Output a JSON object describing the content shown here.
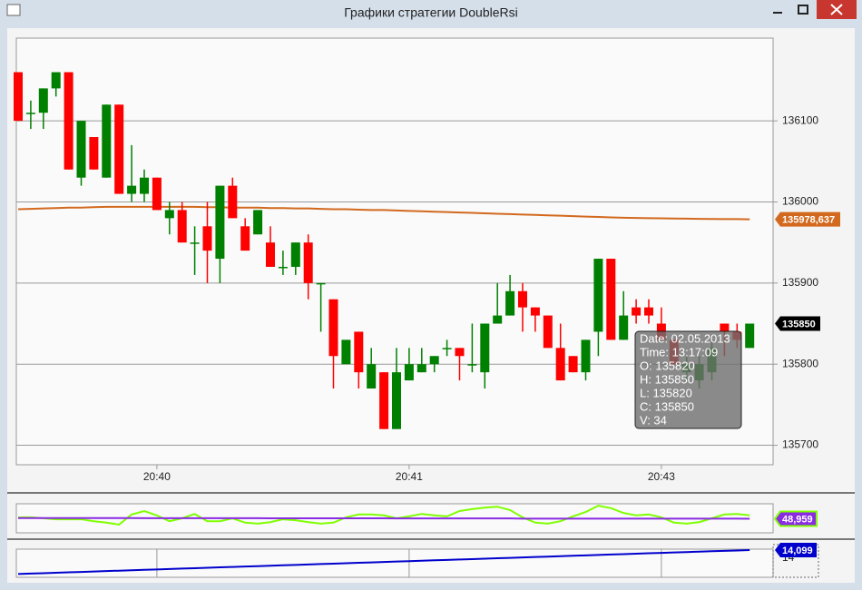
{
  "window": {
    "title": "Графики стратегии DoubleRsi"
  },
  "tooltip": {
    "lines": [
      "Date: 02.05.2013",
      "Time: 13:17:09",
      "O: 135820",
      "H: 135850",
      "L: 135820",
      "C: 135850",
      "V: 34"
    ]
  },
  "chart_data": [
    {
      "type": "candlestick",
      "up_color": "#008000",
      "down_color": "#ff0000",
      "grid": true,
      "ylim": [
        135676,
        136202
      ],
      "yticks": [
        135700,
        135800,
        135900,
        136000,
        136100
      ],
      "categories": [
        null,
        null,
        null,
        null,
        null,
        null,
        null,
        null,
        null,
        null,
        null,
        "20:40",
        null,
        null,
        null,
        null,
        null,
        null,
        null,
        null,
        null,
        null,
        null,
        null,
        null,
        null,
        null,
        null,
        null,
        null,
        null,
        "20:41",
        null,
        null,
        null,
        null,
        null,
        null,
        null,
        null,
        null,
        null,
        null,
        null,
        null,
        null,
        null,
        null,
        null,
        null,
        null,
        "20:43",
        null,
        null,
        null,
        null,
        null,
        null,
        null
      ],
      "open": [
        136160,
        136110,
        136110,
        136140,
        136160,
        136030,
        136080,
        136030,
        136120,
        136010,
        136010,
        136030,
        135980,
        135990,
        135950,
        135970,
        135930,
        136020,
        135970,
        135960,
        135950,
        135920,
        135920,
        135950,
        135900,
        135880,
        135800,
        135840,
        135770,
        135790,
        135720,
        135780,
        135790,
        135800,
        135820,
        135820,
        135800,
        135790,
        135850,
        135860,
        135890,
        135870,
        135860,
        135820,
        135810,
        135790,
        135840,
        135930,
        135830,
        135870,
        135870,
        135850,
        135830,
        135790,
        135780,
        135790,
        135850,
        135840,
        135820
      ],
      "high": [
        136160,
        136125,
        136140,
        136160,
        136160,
        136100,
        136080,
        136120,
        136120,
        136070,
        136040,
        136030,
        136000,
        136000,
        135970,
        136000,
        136020,
        136030,
        135980,
        135990,
        135970,
        135940,
        135950,
        135960,
        135900,
        135880,
        135830,
        135840,
        135820,
        135790,
        135820,
        135820,
        135820,
        135810,
        135830,
        135820,
        135850,
        135850,
        135900,
        135910,
        135900,
        135870,
        135860,
        135850,
        135810,
        135830,
        135930,
        135930,
        135890,
        135880,
        135880,
        135870,
        135830,
        135810,
        135810,
        135830,
        135850,
        135850,
        135850
      ],
      "low": [
        136100,
        136090,
        136090,
        136130,
        136040,
        136020,
        136040,
        136030,
        136010,
        136000,
        136000,
        135990,
        135960,
        135950,
        135910,
        135900,
        135900,
        135980,
        135940,
        135960,
        135920,
        135910,
        135910,
        135880,
        135840,
        135770,
        135800,
        135770,
        135770,
        135720,
        135720,
        135780,
        135790,
        135790,
        135810,
        135780,
        135790,
        135770,
        135850,
        135860,
        135840,
        135840,
        135820,
        135780,
        135790,
        135780,
        135810,
        135830,
        135830,
        135850,
        135850,
        135830,
        135800,
        135780,
        135770,
        135780,
        135810,
        135820,
        135820
      ],
      "close": [
        136100,
        136110,
        136140,
        136160,
        136040,
        136100,
        136040,
        136120,
        136010,
        136020,
        136030,
        135990,
        135990,
        135950,
        135950,
        135940,
        136020,
        135980,
        135940,
        135990,
        135920,
        135920,
        135950,
        135900,
        135900,
        135810,
        135830,
        135790,
        135800,
        135720,
        135790,
        135800,
        135800,
        135810,
        135820,
        135810,
        135800,
        135850,
        135860,
        135890,
        135870,
        135860,
        135820,
        135780,
        135790,
        135830,
        135930,
        135830,
        135860,
        135860,
        135860,
        135830,
        135800,
        135800,
        135800,
        135820,
        135840,
        135830,
        135850
      ],
      "overlays": [
        {
          "color": "#d2691e",
          "value_label": "135978,637",
          "values": [
            135991,
            135991.5,
            135992,
            135992.5,
            135993,
            135993,
            135993.5,
            135994,
            135994,
            135994,
            135994,
            135994,
            135994,
            135994,
            135994,
            135993.5,
            135993.5,
            135993,
            135993,
            135993,
            135992.5,
            135992.5,
            135992,
            135992,
            135991.5,
            135991,
            135991,
            135990.5,
            135990,
            135990,
            135989.5,
            135989,
            135988.5,
            135988,
            135987.5,
            135987,
            135986.5,
            135986,
            135985.5,
            135985,
            135984.5,
            135984,
            135983.5,
            135983,
            135982.5,
            135982,
            135981.5,
            135981,
            135980.5,
            135980.2,
            135980,
            135979.8,
            135979.6,
            135979.4,
            135979.2,
            135979,
            135978.9,
            135978.8,
            135978.637
          ]
        }
      ]
    },
    {
      "type": "line",
      "ylim": [
        20,
        80
      ],
      "series": [
        {
          "color": "#7fff00",
          "values": [
            51.9,
            52,
            50,
            48,
            48,
            48,
            44,
            41,
            37,
            58,
            65,
            56,
            44,
            50,
            59,
            44,
            44,
            50,
            41,
            39,
            42,
            48,
            46,
            42,
            39,
            41,
            52,
            58,
            58,
            56,
            50,
            54,
            59,
            56,
            54,
            65,
            69,
            72,
            74,
            67,
            52,
            41,
            39,
            44,
            54,
            63,
            76,
            71,
            61,
            56,
            58,
            52,
            41,
            39,
            42,
            50,
            58,
            59,
            56
          ]
        },
        {
          "color": "#8a2be2",
          "value_label": "48,959",
          "values": [
            50.5,
            50.5,
            50.5,
            50.5,
            50.5,
            50.5,
            50.5,
            50.5,
            50.5,
            50.5,
            50.3,
            50.3,
            50.3,
            50.3,
            50.3,
            50.3,
            50.3,
            50.3,
            50.3,
            50.3,
            50,
            50,
            50,
            50,
            50,
            50,
            50,
            50,
            50,
            50,
            49.7,
            49.7,
            49.7,
            49.7,
            49.7,
            49.7,
            49.7,
            49.7,
            49.7,
            49.7,
            49.4,
            49.4,
            49.4,
            49.4,
            49.4,
            49.4,
            49.4,
            49.4,
            49.4,
            49.4,
            49.2,
            49.2,
            49.2,
            49.2,
            49.2,
            49.2,
            49.2,
            49.2,
            48.959
          ]
        }
      ]
    },
    {
      "type": "line",
      "ylim": [
        13.77,
        14.11
      ],
      "yticks": [
        14
      ],
      "series": [
        {
          "color": "#0000cc",
          "value_label": "14,099",
          "values": [
            13.81,
            13.815,
            13.82,
            13.825,
            13.83,
            13.835,
            13.84,
            13.845,
            13.85,
            13.855,
            13.86,
            13.865,
            13.87,
            13.875,
            13.88,
            13.885,
            13.89,
            13.895,
            13.9,
            13.905,
            13.91,
            13.915,
            13.92,
            13.925,
            13.93,
            13.935,
            13.94,
            13.945,
            13.95,
            13.955,
            13.96,
            13.965,
            13.97,
            13.975,
            13.98,
            13.985,
            13.99,
            13.995,
            14.0,
            14.005,
            14.01,
            14.015,
            14.02,
            14.025,
            14.03,
            14.035,
            14.04,
            14.045,
            14.05,
            14.055,
            14.06,
            14.065,
            14.07,
            14.075,
            14.08,
            14.085,
            14.09,
            14.094,
            14.099
          ]
        }
      ]
    }
  ]
}
